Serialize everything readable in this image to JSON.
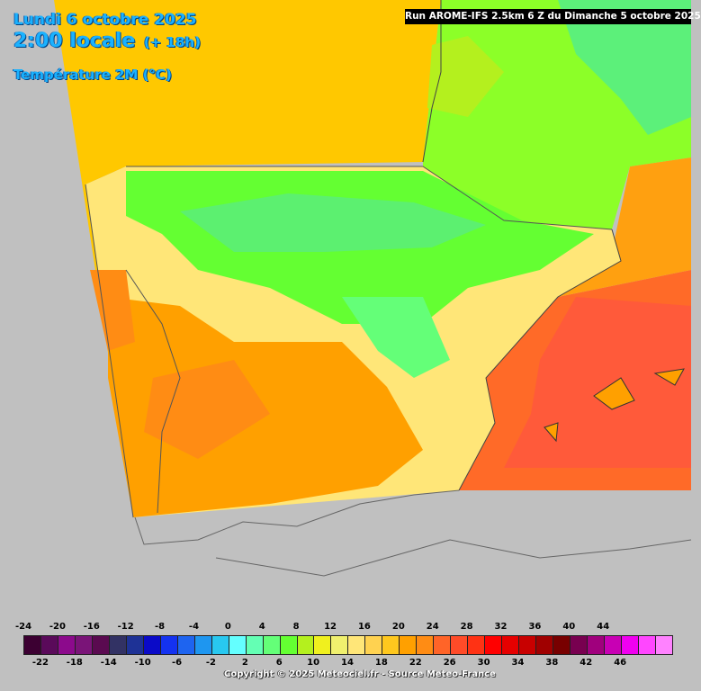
{
  "header": {
    "date": "Lundi 6 octobre 2025",
    "time": "2:00 locale",
    "lead": "(+ 18h)",
    "parameter": "Température 2M (°C)",
    "run": "Run AROME-IFS 2.5km 6 Z du Dimanche 5 octobre 2025"
  },
  "legend": {
    "colors": [
      "#3c0032",
      "#5a0a5a",
      "#8c0a8c",
      "#7a1478",
      "#5a0a50",
      "#323264",
      "#1e3296",
      "#0a0ac8",
      "#1432f0",
      "#1e64f0",
      "#1e96f0",
      "#28c8f0",
      "#64ffff",
      "#64ffb4",
      "#64ff78",
      "#64ff32",
      "#b4f01e",
      "#f0f01e",
      "#f0f06e",
      "#ffe678",
      "#ffd250",
      "#ffc81e",
      "#ffa000",
      "#ff8c14",
      "#ff6428",
      "#ff4b28",
      "#ff3214",
      "#ff0000",
      "#e60000",
      "#c80000",
      "#a00000",
      "#780000",
      "#780050",
      "#a0007d",
      "#c800b4",
      "#f000f0",
      "#ff46ff",
      "#ff82ff"
    ],
    "upper_ticks": [
      "-24",
      "-20",
      "-16",
      "-12",
      "-8",
      "-4",
      "0",
      "4",
      "8",
      "12",
      "16",
      "20",
      "24",
      "28",
      "32",
      "36",
      "40",
      "44"
    ],
    "lower_ticks": [
      "-22",
      "-18",
      "-14",
      "-10",
      "-6",
      "-2",
      "2",
      "6",
      "10",
      "14",
      "18",
      "22",
      "26",
      "30",
      "34",
      "38",
      "42",
      "46"
    ]
  },
  "copyright": "Copyright © 2025 Meteociel.fr - Source Meteo-France"
}
